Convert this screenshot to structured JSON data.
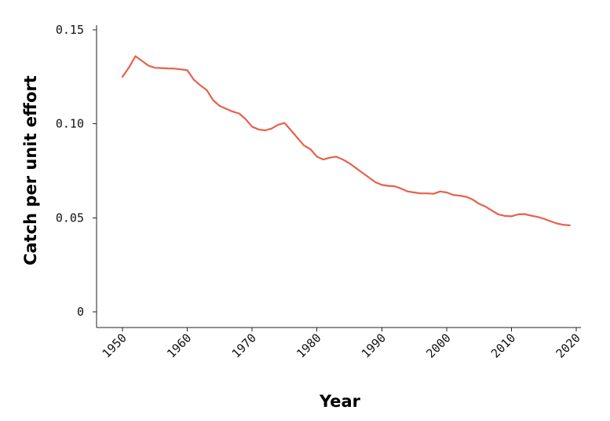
{
  "chart_data": {
    "type": "line",
    "title": "",
    "xlabel": "Year",
    "ylabel": "Catch per unit effort",
    "xlim": [
      1950,
      2020
    ],
    "ylim": [
      0,
      0.15
    ],
    "x_ticks": [
      1950,
      1960,
      1970,
      1980,
      1990,
      2000,
      2010,
      2020
    ],
    "x_tick_labels": [
      "1950",
      "1960",
      "1970",
      "1980",
      "1990",
      "2000",
      "2010",
      "2020"
    ],
    "y_ticks": [
      0,
      0.05,
      0.1,
      0.15
    ],
    "y_tick_labels": [
      "0",
      "0.05",
      "0.10",
      "0.15"
    ],
    "grid": false,
    "line_color": "#e8604a",
    "series": [
      {
        "x": [
          1950,
          1951,
          1952,
          1953,
          1954,
          1955,
          1956,
          1957,
          1958,
          1959,
          1960,
          1961,
          1962,
          1963,
          1964,
          1965,
          1966,
          1967,
          1968,
          1969,
          1970,
          1971,
          1972,
          1973,
          1974,
          1975,
          1976,
          1977,
          1978,
          1979,
          1980,
          1981,
          1982,
          1983,
          1984,
          1985,
          1986,
          1987,
          1988,
          1989,
          1990,
          1991,
          1992,
          1993,
          1994,
          1995,
          1996,
          1997,
          1998,
          1999,
          2000,
          2001,
          2002,
          2003,
          2004,
          2005,
          2006,
          2007,
          2008,
          2009,
          2010,
          2011,
          2012,
          2013,
          2014,
          2015,
          2016,
          2017,
          2018,
          2019
        ],
        "y": [
          0.125,
          0.13,
          0.136,
          0.1335,
          0.131,
          0.1298,
          0.1297,
          0.1295,
          0.1294,
          0.129,
          0.1285,
          0.1235,
          0.1205,
          0.118,
          0.1125,
          0.1095,
          0.108,
          0.1065,
          0.1055,
          0.1025,
          0.0985,
          0.097,
          0.0965,
          0.0975,
          0.0995,
          0.1005,
          0.0965,
          0.0925,
          0.0885,
          0.0865,
          0.0825,
          0.081,
          0.082,
          0.0825,
          0.081,
          0.079,
          0.0765,
          0.074,
          0.0715,
          0.069,
          0.0675,
          0.067,
          0.0668,
          0.0655,
          0.064,
          0.0635,
          0.063,
          0.063,
          0.0628,
          0.064,
          0.0635,
          0.0622,
          0.0618,
          0.0612,
          0.0598,
          0.0575,
          0.056,
          0.0538,
          0.0518,
          0.051,
          0.0508,
          0.0518,
          0.052,
          0.0512,
          0.0505,
          0.0495,
          0.0482,
          0.047,
          0.0463,
          0.046
        ]
      }
    ]
  }
}
